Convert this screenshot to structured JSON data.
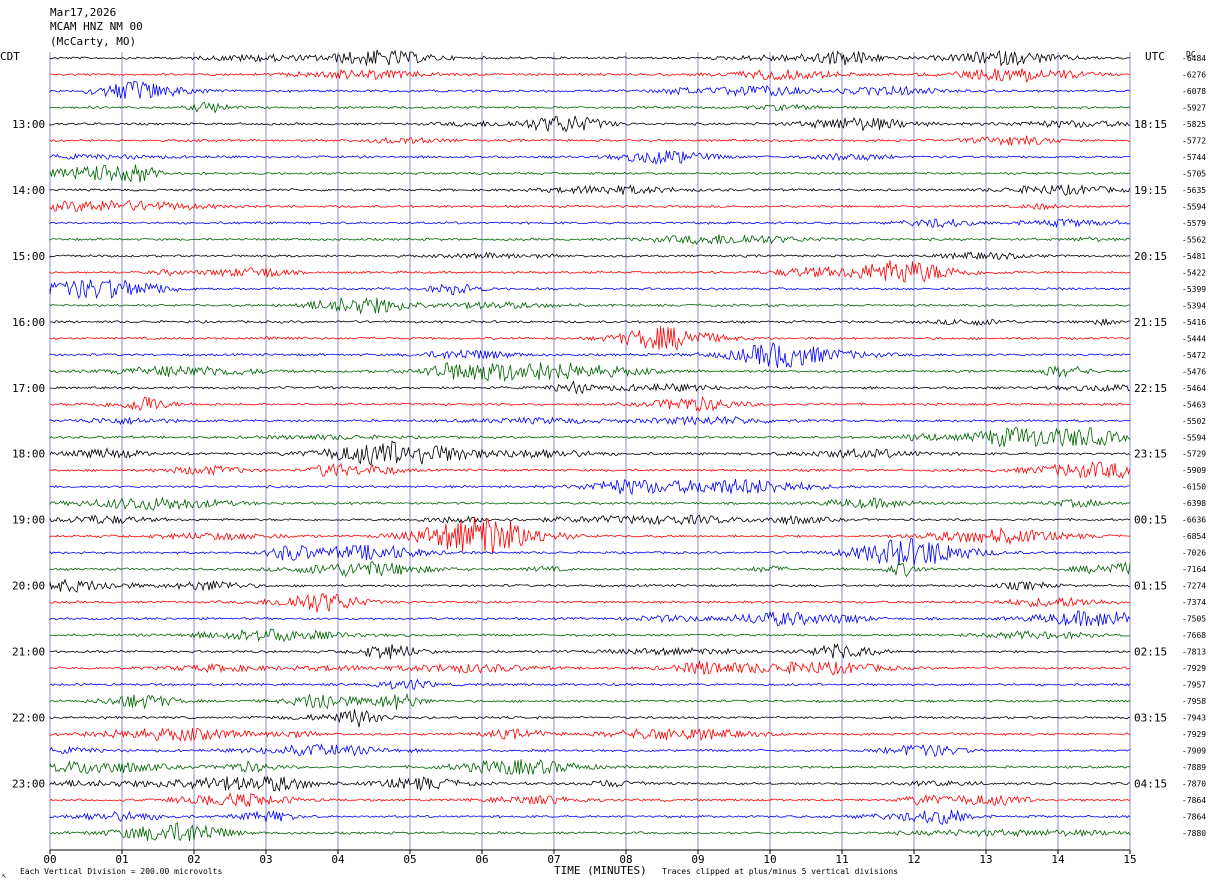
{
  "header": {
    "date": "Mar17,2026",
    "station": "MCAM HNZ NM 00",
    "location": "(McCarty, MO)"
  },
  "left_axis_title": "CDT",
  "right_axis_title": "UTC",
  "dc_title": "DC",
  "footer": {
    "scale_note": "Each Vertical Division =  200.00 microvolts",
    "clip_note": "Traces clipped at plus/minus 5 vertical divisions",
    "corner_mark": "↖"
  },
  "colors": {
    "trace_cycle": [
      "#000000",
      "#ff0000",
      "#0000ff",
      "#006400"
    ],
    "grid": "#8c8cc8",
    "background": "#ffffff"
  },
  "chart_data": {
    "type": "line",
    "subtype": "helicorder",
    "xlabel": "TIME (MINUTES)",
    "x_ticks": [
      "00",
      "01",
      "02",
      "03",
      "04",
      "05",
      "06",
      "07",
      "08",
      "09",
      "10",
      "11",
      "12",
      "13",
      "14",
      "15"
    ],
    "xlim": [
      0,
      15
    ],
    "grid": "vertical lines at each minute",
    "local_time_labels": [
      "13:00",
      "14:00",
      "15:00",
      "16:00",
      "17:00",
      "18:00",
      "19:00",
      "20:00",
      "21:00",
      "22:00",
      "23:00"
    ],
    "utc_time_labels": [
      "18:15",
      "19:15",
      "20:15",
      "21:15",
      "22:15",
      "23:15",
      "00:15",
      "01:15",
      "02:15",
      "03:15",
      "04:15"
    ],
    "trace_dc_offsets": [
      -6484,
      -6276,
      -6078,
      -5927,
      -5825,
      -5772,
      -5744,
      -5705,
      -5635,
      -5594,
      -5579,
      -5562,
      -5481,
      -5422,
      -5399,
      -5394,
      -5416,
      -5444,
      -5472,
      -5476,
      -5464,
      -5463,
      -5502,
      -5594,
      -5729,
      -5909,
      -6150,
      -6398,
      -6636,
      -6854,
      -7026,
      -7164,
      -7274,
      -7374,
      -7505,
      -7668,
      -7813,
      -7929,
      -7957,
      -7958,
      -7943,
      -7929,
      -7909,
      -7889,
      -7870,
      -7864,
      -7864,
      -7880
    ]
  }
}
